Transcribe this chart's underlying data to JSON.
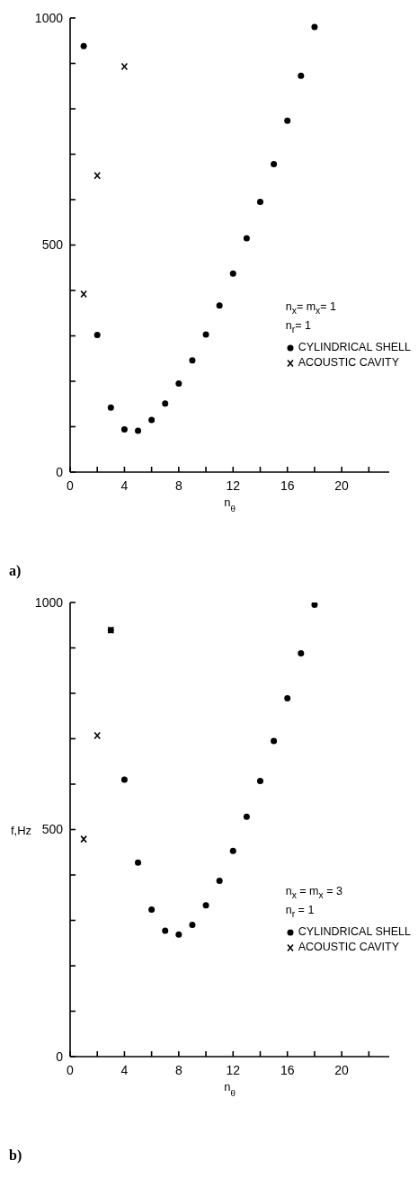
{
  "chart_data": [
    {
      "type": "scatter",
      "xlabel": "n$_{θ}$",
      "xlim": [
        0,
        23.5
      ],
      "xticks": [
        0,
        {
          "value": 2,
          "label": null
        },
        4,
        {
          "value": 6,
          "label": null
        },
        8,
        {
          "value": 10,
          "label": null
        },
        12,
        {
          "value": 14,
          "label": null
        },
        16,
        {
          "value": 18,
          "label": null
        },
        20,
        {
          "value": 22,
          "label": null
        }
      ],
      "ylim": [
        0,
        1000
      ],
      "yticks": [
        0,
        {
          "value": 100,
          "label": null
        },
        {
          "value": 200,
          "label": null
        },
        {
          "value": 300,
          "label": null
        },
        {
          "value": 400,
          "label": null
        },
        500,
        {
          "value": 600,
          "label": null
        },
        {
          "value": 700,
          "label": null
        },
        {
          "value": 800,
          "label": null
        },
        {
          "value": 900,
          "label": null
        },
        1000
      ],
      "legend": "right",
      "grid": false,
      "series": [
        {
          "name": "CYLINDRICAL SHELL",
          "color": "#000000",
          "marker": "circle",
          "x": [
            1,
            2,
            3,
            4,
            5,
            6,
            7,
            8,
            9,
            10,
            11,
            12,
            13,
            14,
            15,
            16,
            17,
            18
          ],
          "values": [
            938,
            302,
            142,
            94,
            91,
            115,
            151,
            195,
            246,
            303,
            367,
            437,
            515,
            595,
            678,
            774,
            873,
            980
          ]
        },
        {
          "name": "ACOUSTIC CAVITY",
          "color": "#000000",
          "marker": "cross",
          "x": [
            1,
            2,
            4
          ],
          "values": [
            392,
            653,
            893
          ]
        }
      ],
      "annotations": [
        "n$_{x}$= m$_{x}$= 1",
        "n$_{r}$= 1",
        "a)"
      ]
    },
    {
      "type": "scatter",
      "xlabel": "n$_{θ}$",
      "ylabel": "f,Hz",
      "xlim": [
        0,
        23.5
      ],
      "xticks": [
        0,
        {
          "value": 2,
          "label": null
        },
        4,
        {
          "value": 6,
          "label": null
        },
        8,
        {
          "value": 10,
          "label": null
        },
        12,
        {
          "value": 14,
          "label": null
        },
        16,
        {
          "value": 18,
          "label": null
        },
        20,
        {
          "value": 22,
          "label": null
        }
      ],
      "ylim": [
        0,
        1000
      ],
      "yticks": [
        0,
        {
          "value": 100,
          "label": null
        },
        {
          "value": 200,
          "label": null
        },
        {
          "value": 300,
          "label": null
        },
        {
          "value": 400,
          "label": null
        },
        500,
        {
          "value": 600,
          "label": null
        },
        {
          "value": 700,
          "label": null
        },
        {
          "value": 800,
          "label": null
        },
        {
          "value": 900,
          "label": null
        },
        1000
      ],
      "legend": "right",
      "grid": false,
      "series": [
        {
          "name": "CYLINDRICAL SHELL",
          "color": "#000000",
          "marker": "circle",
          "x": [
            3,
            4,
            5,
            6,
            7,
            8,
            9,
            10,
            11,
            12,
            13,
            14,
            15,
            16,
            17,
            18
          ],
          "values": [
            939,
            610,
            427,
            324,
            277,
            269,
            290,
            333,
            387,
            453,
            528,
            607,
            695,
            789,
            888,
            995
          ]
        },
        {
          "name": "ACOUSTIC CAVITY",
          "color": "#000000",
          "marker": "cross",
          "x": [
            1,
            2,
            3
          ],
          "values": [
            479,
            707,
            939
          ]
        }
      ],
      "annotations": [
        "n$_{x}$ = m$_{x}$ = 3",
        "n$_{r}$ = 1",
        "b)"
      ]
    }
  ]
}
